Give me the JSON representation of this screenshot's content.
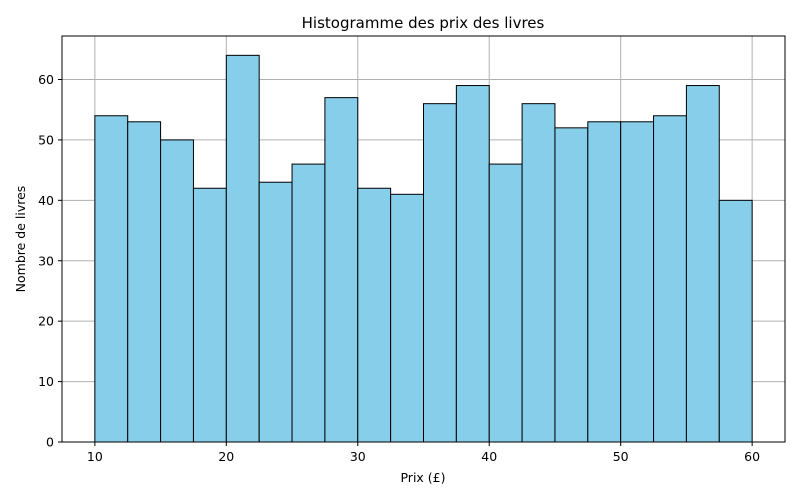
{
  "chart_data": {
    "type": "bar",
    "title": "Histogramme des prix des livres",
    "xlabel": "Prix (£)",
    "ylabel": "Nombre de livres",
    "bin_edges": [
      10,
      12.5,
      15,
      17.5,
      20,
      22.5,
      25,
      27.5,
      30,
      32.5,
      35,
      37.5,
      40,
      42.5,
      45,
      47.5,
      50,
      52.5,
      55,
      57.5,
      60
    ],
    "values": [
      54,
      53,
      50,
      42,
      64,
      43,
      46,
      57,
      42,
      41,
      56,
      59,
      46,
      56,
      52,
      53,
      53,
      54,
      59,
      40
    ],
    "xlim": [
      7.5,
      62.5
    ],
    "ylim": [
      0,
      67.2
    ],
    "xticks": [
      10,
      20,
      30,
      40,
      50,
      60
    ],
    "yticks": [
      0,
      10,
      20,
      30,
      40,
      50,
      60
    ],
    "grid": true,
    "bar_color": "#87CEEB",
    "edge_color": "#000000"
  }
}
